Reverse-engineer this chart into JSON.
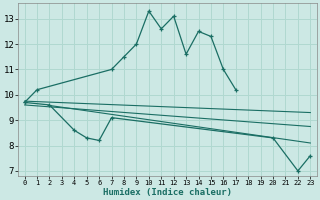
{
  "xlabel": "Humidex (Indice chaleur)",
  "bg_color": "#cce8e4",
  "grid_color": "#b0d8d0",
  "line_color": "#1a6e64",
  "xlim": [
    -0.5,
    23.5
  ],
  "ylim": [
    6.8,
    13.6
  ],
  "xticks": [
    0,
    1,
    2,
    3,
    4,
    5,
    6,
    7,
    8,
    9,
    10,
    11,
    12,
    13,
    14,
    15,
    16,
    17,
    18,
    19,
    20,
    21,
    22,
    23
  ],
  "yticks": [
    7,
    8,
    9,
    10,
    11,
    12,
    13
  ],
  "line1_x": [
    0,
    1,
    7,
    8,
    9,
    10,
    11,
    12,
    13,
    14,
    15,
    16,
    17
  ],
  "line1_y": [
    9.7,
    10.2,
    11.0,
    11.5,
    12.0,
    13.3,
    12.6,
    13.1,
    11.6,
    12.5,
    12.3,
    11.0,
    10.2
  ],
  "line2_x": [
    0,
    2,
    4,
    5,
    6,
    7,
    20,
    22,
    23
  ],
  "line2_y": [
    9.7,
    9.6,
    8.6,
    8.3,
    8.2,
    9.1,
    8.3,
    7.0,
    7.6
  ],
  "line3_x": [
    0,
    23
  ],
  "line3_y": [
    9.75,
    9.3
  ],
  "line4_x": [
    0,
    23
  ],
  "line4_y": [
    9.6,
    8.75
  ],
  "line5_x": [
    2,
    23
  ],
  "line5_y": [
    9.58,
    8.1
  ]
}
